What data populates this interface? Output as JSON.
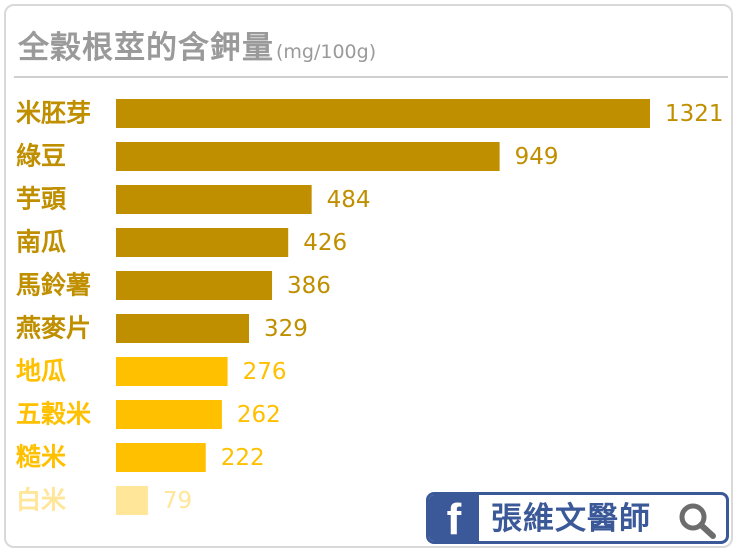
{
  "chart_data": {
    "type": "bar",
    "orientation": "horizontal",
    "title": "全穀根莖的含鉀量",
    "unit": "(mg/100g)",
    "categories": [
      "米胚芽",
      "綠豆",
      "芋頭",
      "南瓜",
      "馬鈴薯",
      "燕麥片",
      "地瓜",
      "五穀米",
      "糙米",
      "白米"
    ],
    "values": [
      1321,
      949,
      484,
      426,
      386,
      329,
      276,
      262,
      222,
      79
    ],
    "value_labels": [
      "1321",
      "949",
      "484",
      "426",
      "386",
      "329",
      "276",
      "262",
      "222",
      "79"
    ],
    "colors": [
      "#c08f00",
      "#c08f00",
      "#c08f00",
      "#c08f00",
      "#c08f00",
      "#c08f00",
      "#ffc000",
      "#ffc000",
      "#ffc000",
      "#ffe699"
    ],
    "xlim": [
      0,
      1321
    ],
    "grid": false,
    "legend": "none"
  },
  "badge": {
    "logo_letter": "f",
    "name": "張維文醫師",
    "icon": "search-icon",
    "color": "#3b5998"
  }
}
